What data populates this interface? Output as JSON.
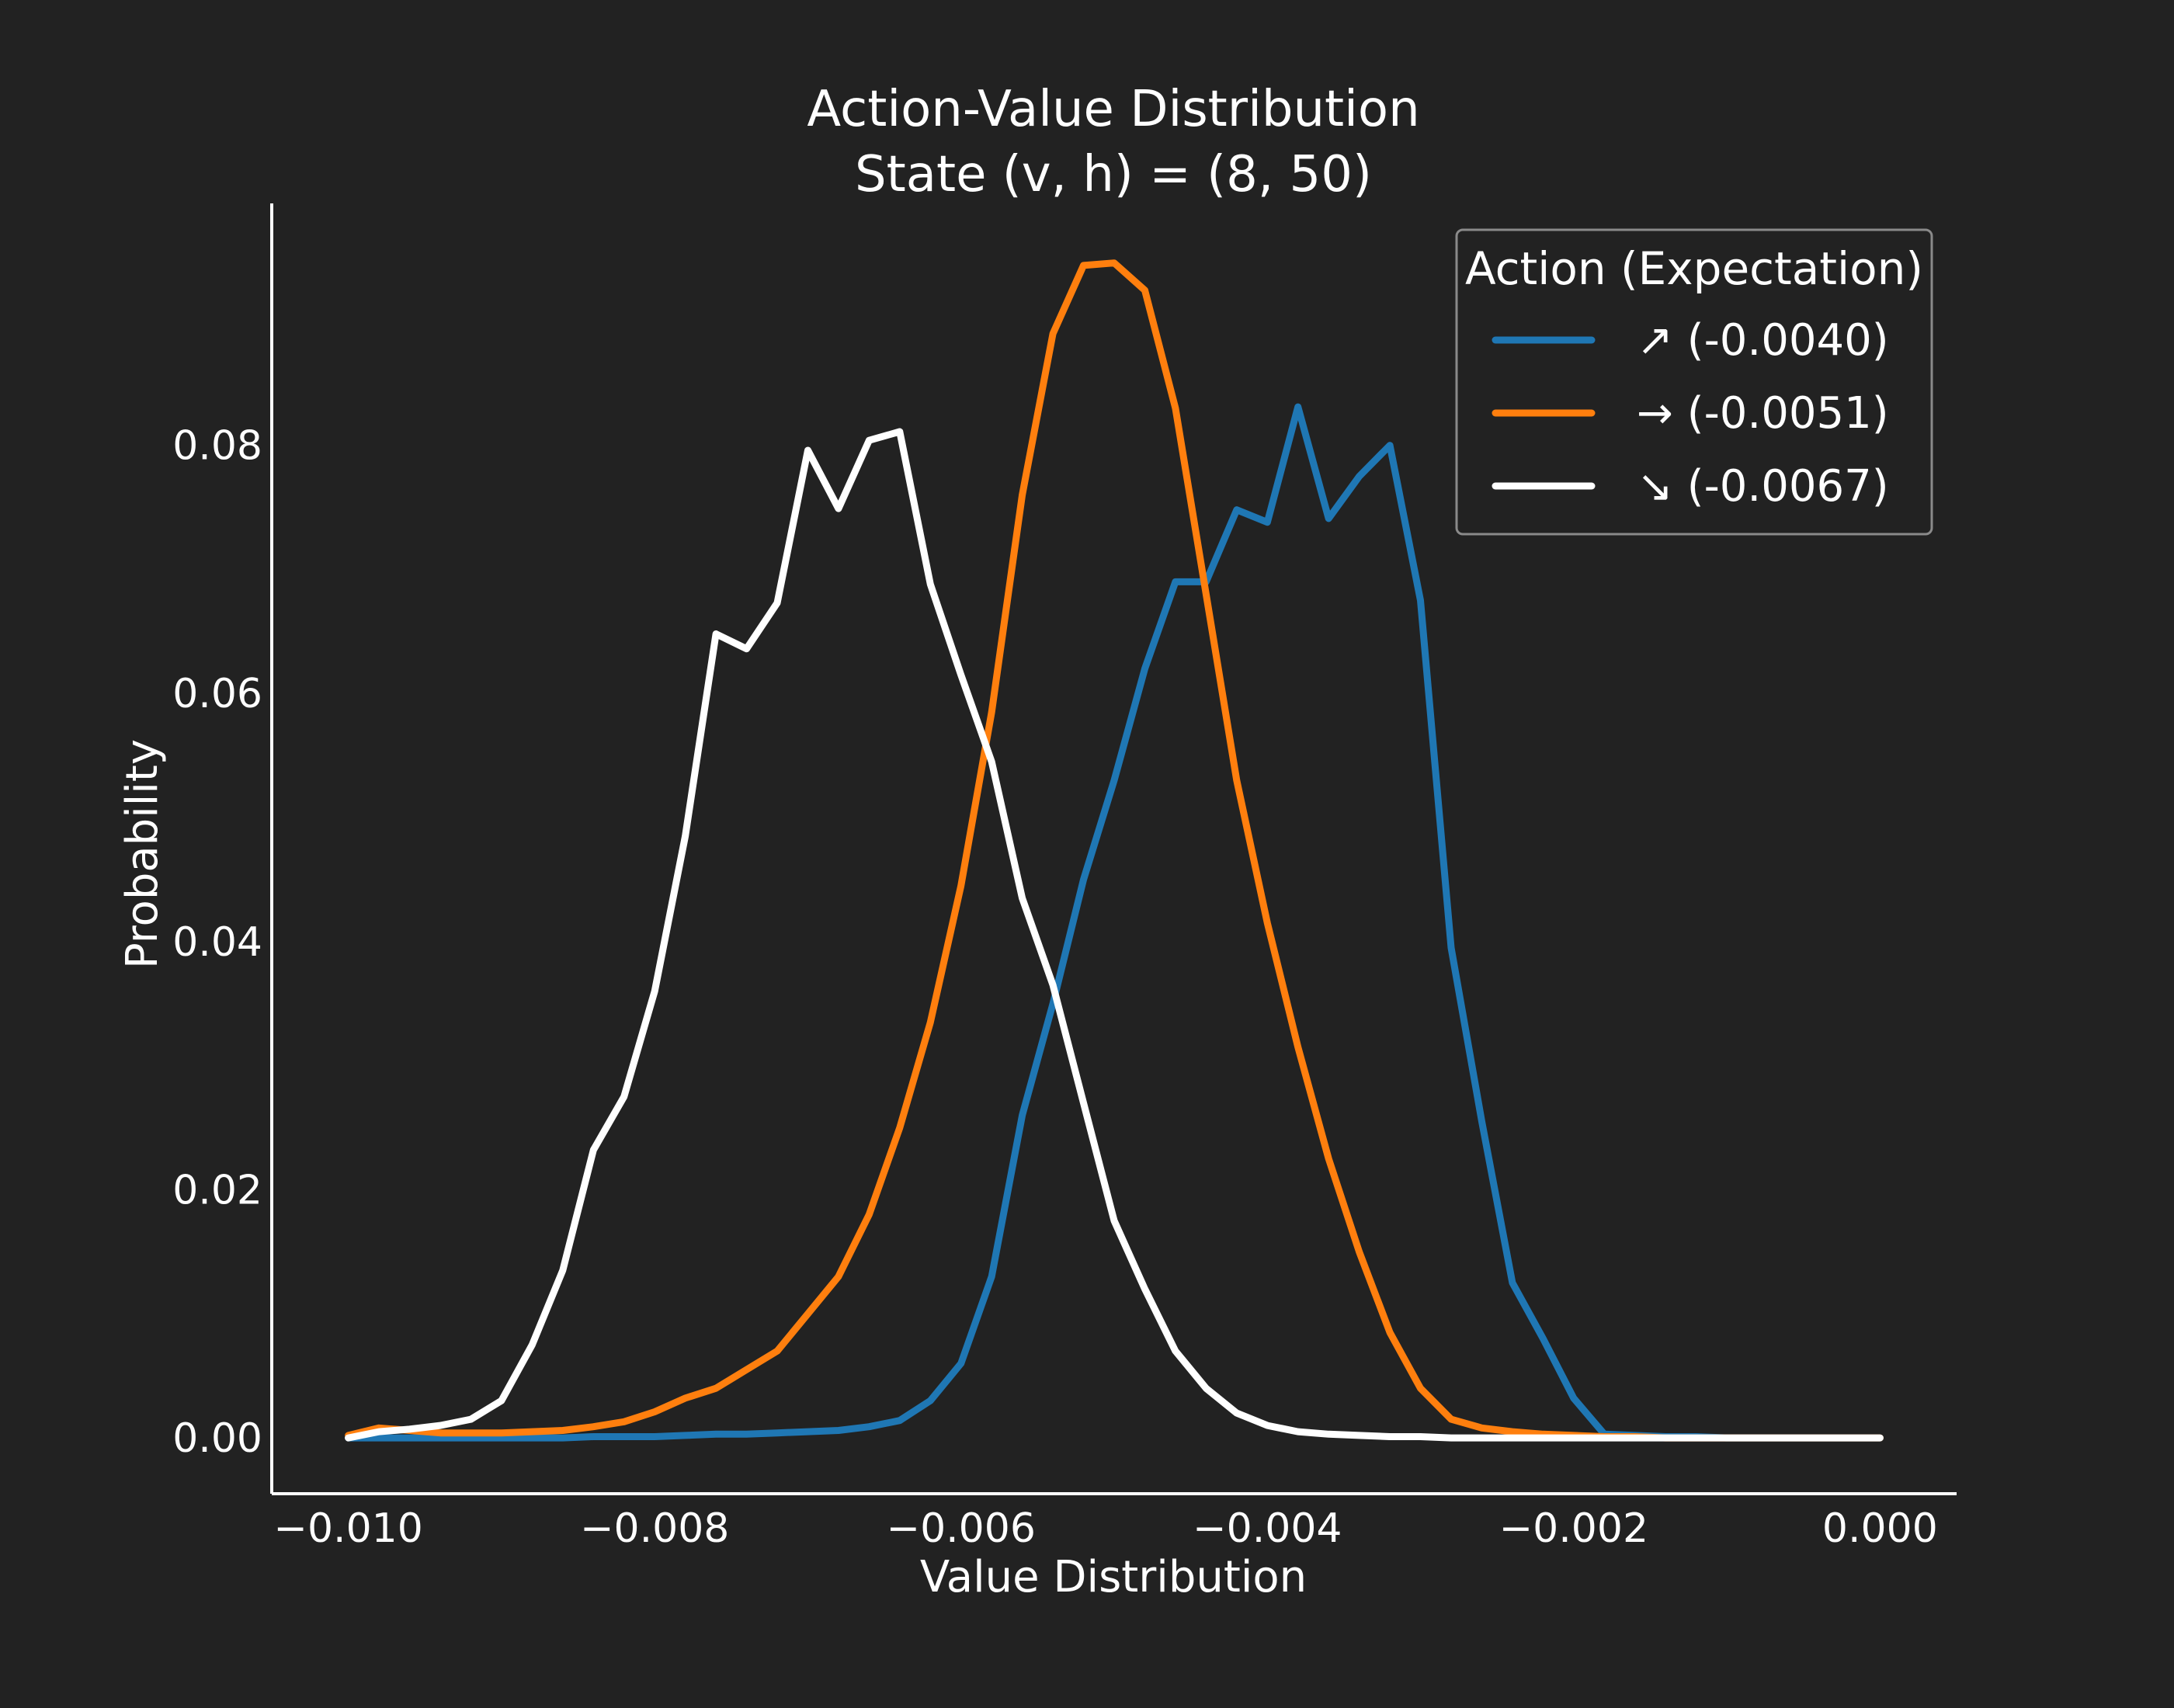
{
  "chart_data": {
    "type": "line",
    "title": "Action-Value Distribution",
    "subtitle": "State (v, h) = (8, 50)",
    "xlabel": "Value Distribution",
    "ylabel": "Probability",
    "xlim": [
      -0.0105,
      0.0005
    ],
    "ylim": [
      -0.0045,
      0.0995
    ],
    "xticks": [
      -0.01,
      -0.008,
      -0.006,
      -0.004,
      -0.002,
      0.0
    ],
    "xtick_labels": [
      "−0.010",
      "−0.008",
      "−0.006",
      "−0.004",
      "−0.002",
      "0.000"
    ],
    "yticks": [
      0.0,
      0.02,
      0.04,
      0.06,
      0.08
    ],
    "ytick_labels": [
      "0.00",
      "0.02",
      "0.04",
      "0.06",
      "0.08"
    ],
    "grid": false,
    "legend": {
      "title": "Action (Expectation)",
      "placement": "top-right"
    },
    "x": [
      -0.01,
      -0.0098,
      -0.0096,
      -0.0094,
      -0.0092,
      -0.009,
      -0.0088,
      -0.0086,
      -0.0084,
      -0.0082,
      -0.008,
      -0.0078,
      -0.0076,
      -0.0074,
      -0.0072,
      -0.007,
      -0.0068,
      -0.0066,
      -0.0064,
      -0.0062,
      -0.006,
      -0.0058,
      -0.0056,
      -0.0054,
      -0.0052,
      -0.005,
      -0.0048,
      -0.0046,
      -0.0044,
      -0.0042,
      -0.004,
      -0.0038,
      -0.0036,
      -0.0034,
      -0.0032,
      -0.003,
      -0.0028,
      -0.0026,
      -0.0024,
      -0.0022,
      -0.002,
      -0.0018,
      -0.0016,
      -0.0014,
      -0.0012,
      -0.001,
      -0.0008,
      -0.0006,
      -0.0004,
      -0.0002,
      0.0
    ],
    "series": [
      {
        "name": "↗ (-0.0040)",
        "color": "#1f77b4",
        "values": [
          0.0,
          0.0,
          0.0,
          0.0,
          0.0,
          0.0,
          0.0,
          0.0,
          0.0001,
          0.0001,
          0.0001,
          0.0002,
          0.0003,
          0.0003,
          0.0004,
          0.0005,
          0.0006,
          0.0009,
          0.0014,
          0.003,
          0.006,
          0.013,
          0.026,
          0.035,
          0.045,
          0.053,
          0.062,
          0.069,
          0.069,
          0.0748,
          0.0738,
          0.0831,
          0.0741,
          0.0775,
          0.08,
          0.0675,
          0.0395,
          0.0255,
          0.0125,
          0.008,
          0.0032,
          0.0003,
          0.0002,
          0.0001,
          0.0001,
          0.0,
          0.0,
          0.0,
          0.0,
          0.0,
          0.0
        ]
      },
      {
        "name": "→ (-0.0051)",
        "color": "#ff7f0e",
        "values": [
          0.0002,
          0.0008,
          0.0006,
          0.0004,
          0.0004,
          0.0004,
          0.0005,
          0.0006,
          0.0009,
          0.0013,
          0.0021,
          0.0032,
          0.004,
          0.0055,
          0.007,
          0.01,
          0.013,
          0.018,
          0.025,
          0.0335,
          0.0445,
          0.0585,
          0.076,
          0.089,
          0.0945,
          0.0947,
          0.0925,
          0.083,
          0.068,
          0.053,
          0.0415,
          0.0315,
          0.0225,
          0.015,
          0.0085,
          0.004,
          0.0015,
          0.0008,
          0.0005,
          0.0003,
          0.0002,
          0.0001,
          0.0001,
          0.0,
          0.0,
          0.0,
          0.0,
          0.0,
          0.0,
          0.0,
          0.0
        ]
      },
      {
        "name": "↘ (-0.0067)",
        "color": "#ffffff",
        "values": [
          0.0,
          0.0005,
          0.0007,
          0.001,
          0.0015,
          0.003,
          0.0075,
          0.0135,
          0.0232,
          0.0275,
          0.036,
          0.0485,
          0.0648,
          0.0636,
          0.0673,
          0.0796,
          0.0749,
          0.0804,
          0.0811,
          0.0688,
          0.0615,
          0.0545,
          0.0435,
          0.0365,
          0.027,
          0.0175,
          0.012,
          0.007,
          0.004,
          0.002,
          0.001,
          0.0005,
          0.0003,
          0.0002,
          0.0001,
          0.0001,
          0.0,
          0.0,
          0.0,
          0.0,
          0.0,
          0.0,
          0.0,
          0.0,
          0.0,
          0.0,
          0.0,
          0.0,
          0.0,
          0.0,
          0.0
        ]
      }
    ]
  }
}
